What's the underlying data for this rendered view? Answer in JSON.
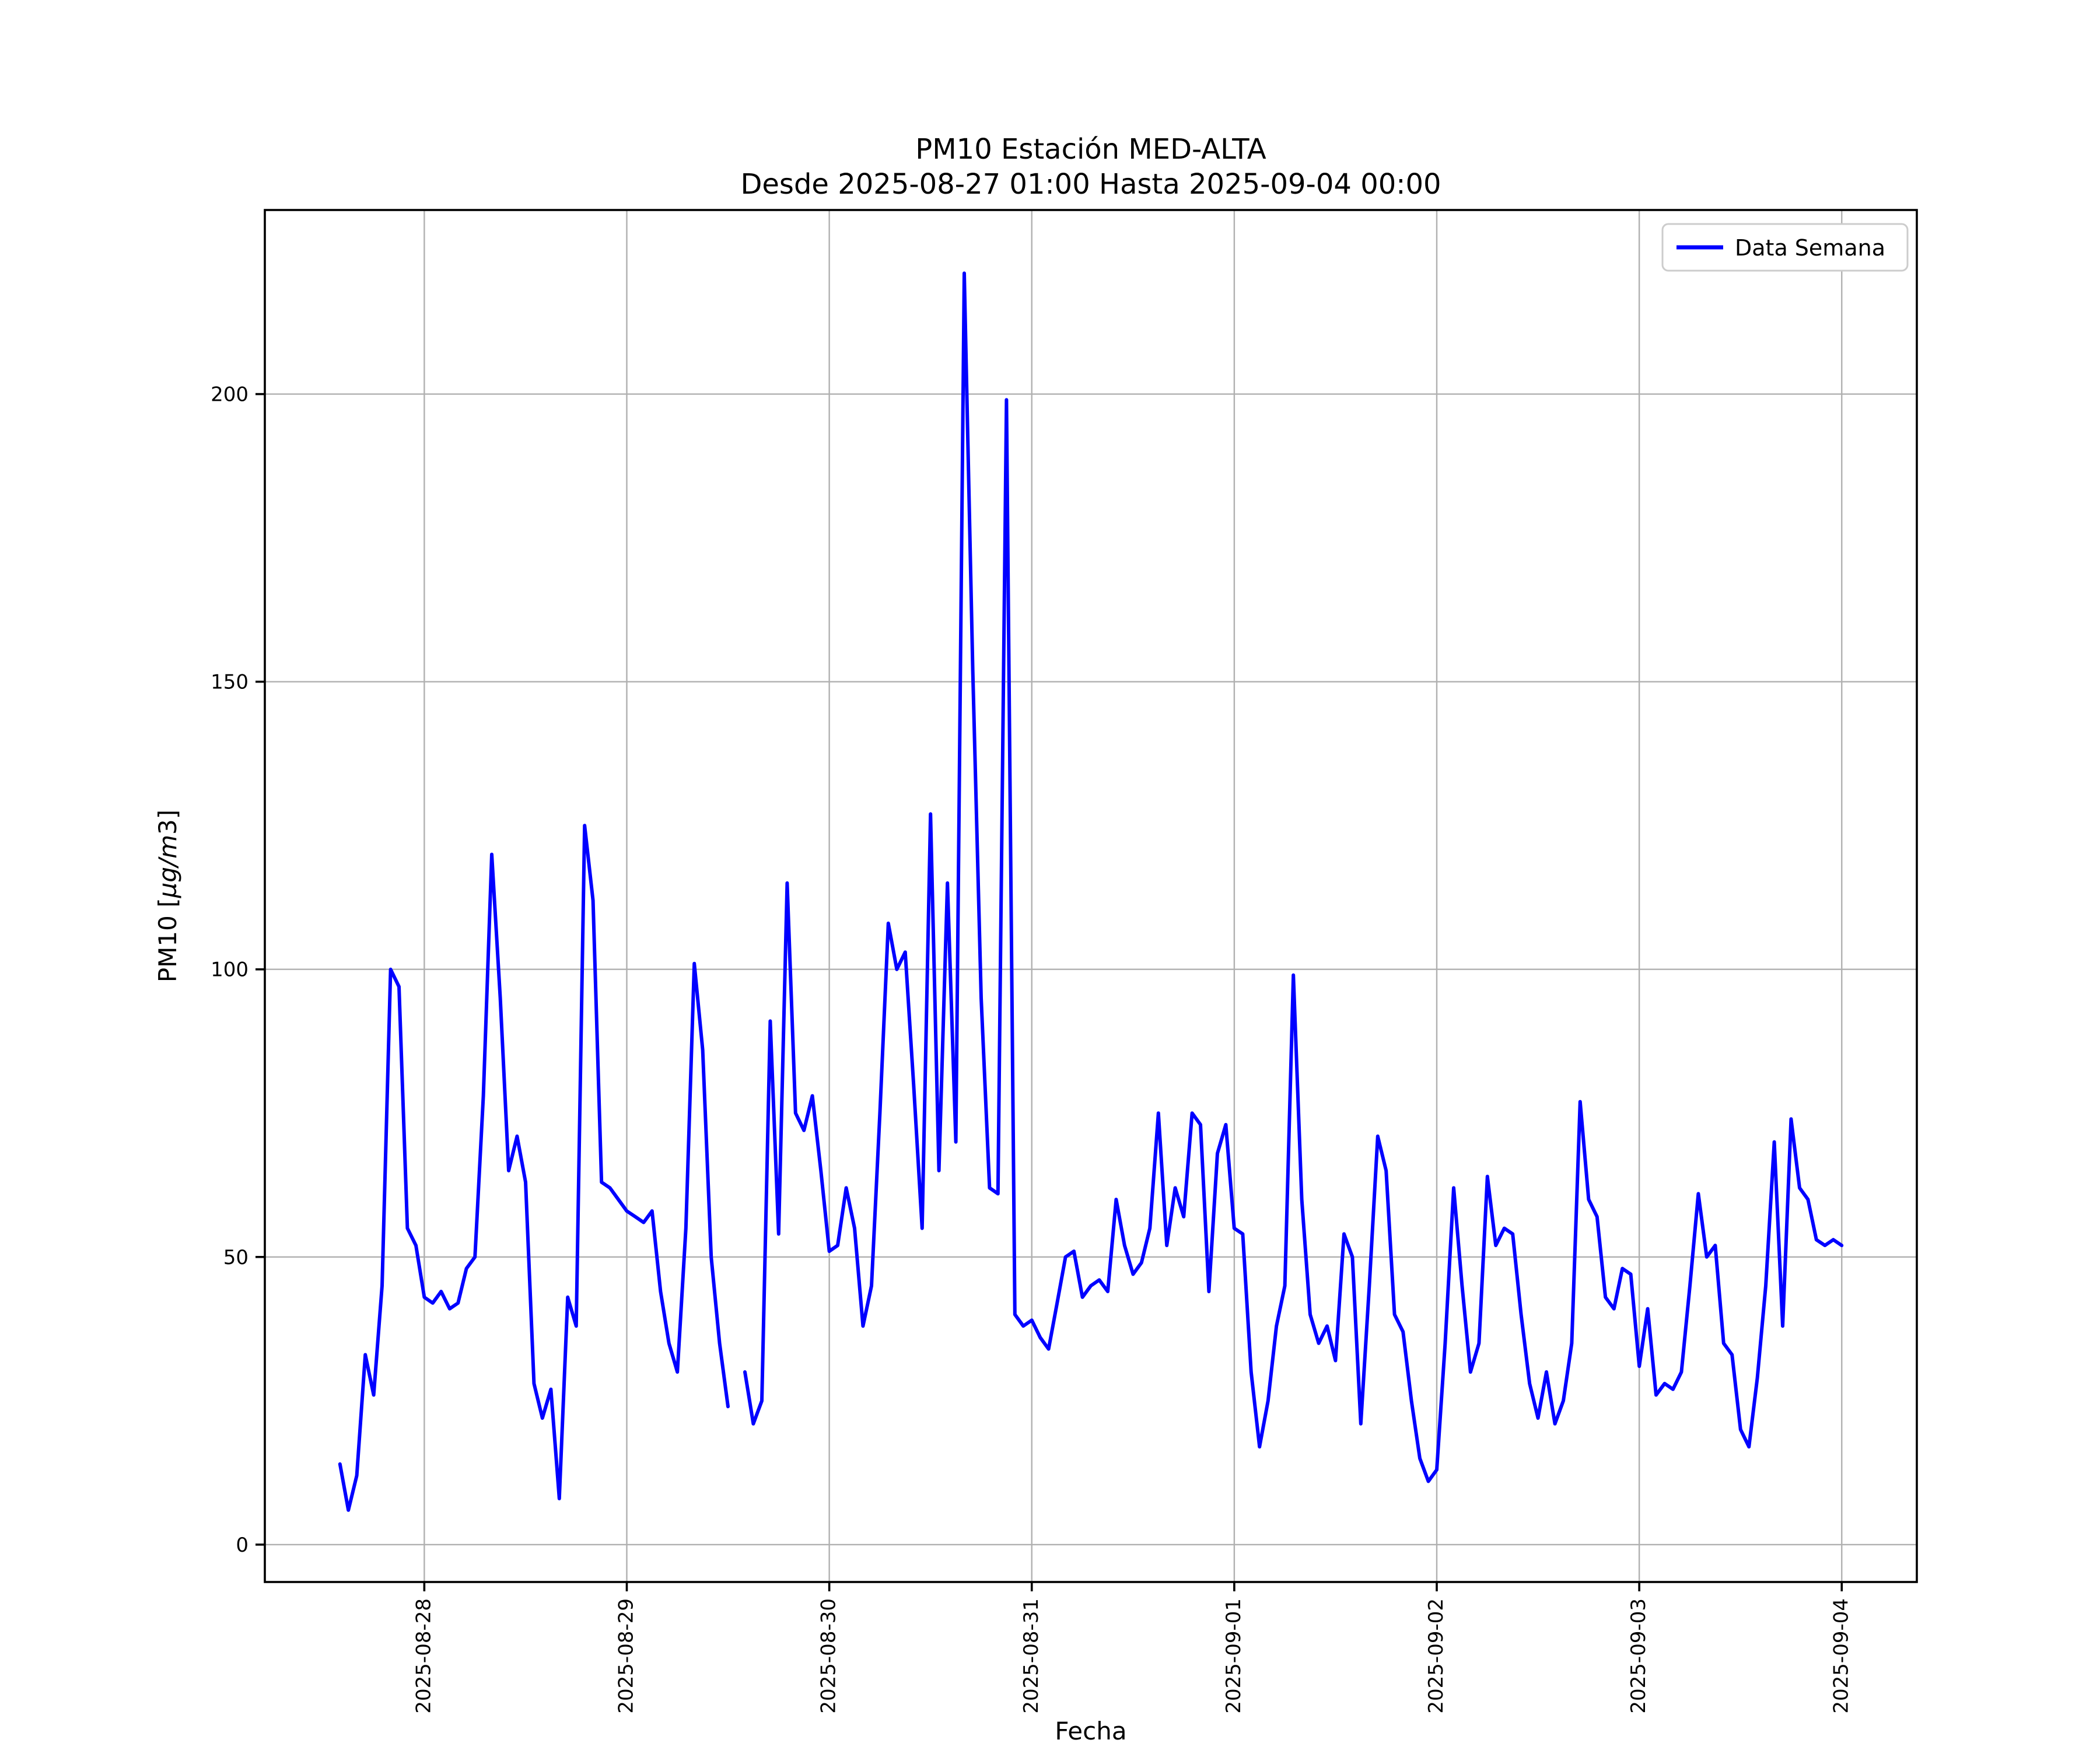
{
  "figure": {
    "title_line1": "PM10 Estación MED-ALTA",
    "title_line2": "Desde 2025-08-27 01:00 Hasta 2025-09-04 00:00",
    "xlabel": "Fecha",
    "ylabel": "PM10 [µg/m3]",
    "ylabel_parts": {
      "prefix": "PM10 [",
      "italic": "µg/m",
      "suffix": "3]"
    },
    "legend_label": "Data Semana"
  },
  "chart_data": {
    "type": "line",
    "title": "PM10 Estación MED-ALTA",
    "subtitle": "Desde 2025-08-27 01:00 Hasta 2025-09-04 00:00",
    "xlabel": "Fecha",
    "ylabel": "PM10 [µg/m3]",
    "legend": [
      "Data Semana"
    ],
    "legend_position": "upper right",
    "grid": true,
    "series_color": "#0000ff",
    "grid_color": "#b0b0b0",
    "ylim": [
      -6.5,
      232
    ],
    "xlim_hours": [
      -8.9,
      186.9
    ],
    "yticks": [
      0,
      50,
      100,
      150,
      200
    ],
    "xticks": [
      {
        "label": "2025-08-28",
        "hour_offset": 10
      },
      {
        "label": "2025-08-29",
        "hour_offset": 34
      },
      {
        "label": "2025-08-30",
        "hour_offset": 58
      },
      {
        "label": "2025-08-31",
        "hour_offset": 82
      },
      {
        "label": "2025-09-01",
        "hour_offset": 106
      },
      {
        "label": "2025-09-02",
        "hour_offset": 130
      },
      {
        "label": "2025-09-03",
        "hour_offset": 154
      },
      {
        "label": "2025-09-04",
        "hour_offset": 178
      }
    ],
    "x_start": "2025-08-27 14:00",
    "x_end": "2025-09-04 00:00",
    "x_step_hours": 1,
    "values": [
      14,
      6,
      12,
      33,
      26,
      45,
      100,
      97,
      55,
      52,
      43,
      42,
      44,
      41,
      42,
      48,
      50,
      78,
      120,
      95,
      65,
      71,
      63,
      28,
      22,
      27,
      8,
      43,
      38,
      125,
      112,
      63,
      62,
      60,
      58,
      57,
      56,
      58,
      44,
      35,
      30,
      55,
      101,
      86,
      50,
      35,
      24,
      null,
      30,
      21,
      25,
      91,
      54,
      115,
      75,
      72,
      78,
      65,
      51,
      52,
      62,
      55,
      38,
      45,
      75,
      108,
      100,
      103,
      80,
      55,
      127,
      65,
      115,
      70,
      221,
      152,
      95,
      62,
      61,
      199,
      40,
      38,
      39,
      36,
      34,
      42,
      50,
      51,
      43,
      45,
      46,
      44,
      60,
      52,
      47,
      49,
      55,
      75,
      52,
      62,
      57,
      75,
      73,
      44,
      68,
      73,
      55,
      54,
      30,
      17,
      25,
      38,
      45,
      99,
      60,
      40,
      35,
      38,
      32,
      54,
      50,
      21,
      45,
      71,
      65,
      40,
      37,
      25,
      15,
      11,
      13,
      35,
      62,
      45,
      30,
      35,
      64,
      52,
      55,
      54,
      40,
      28,
      22,
      30,
      21,
      25,
      35,
      77,
      60,
      57,
      43,
      41,
      48,
      47,
      31,
      41,
      26,
      28,
      27,
      30,
      45,
      61,
      50,
      52,
      35,
      33,
      20,
      17,
      29,
      45,
      70,
      38,
      74,
      62,
      60,
      53,
      52,
      53,
      52
    ]
  }
}
